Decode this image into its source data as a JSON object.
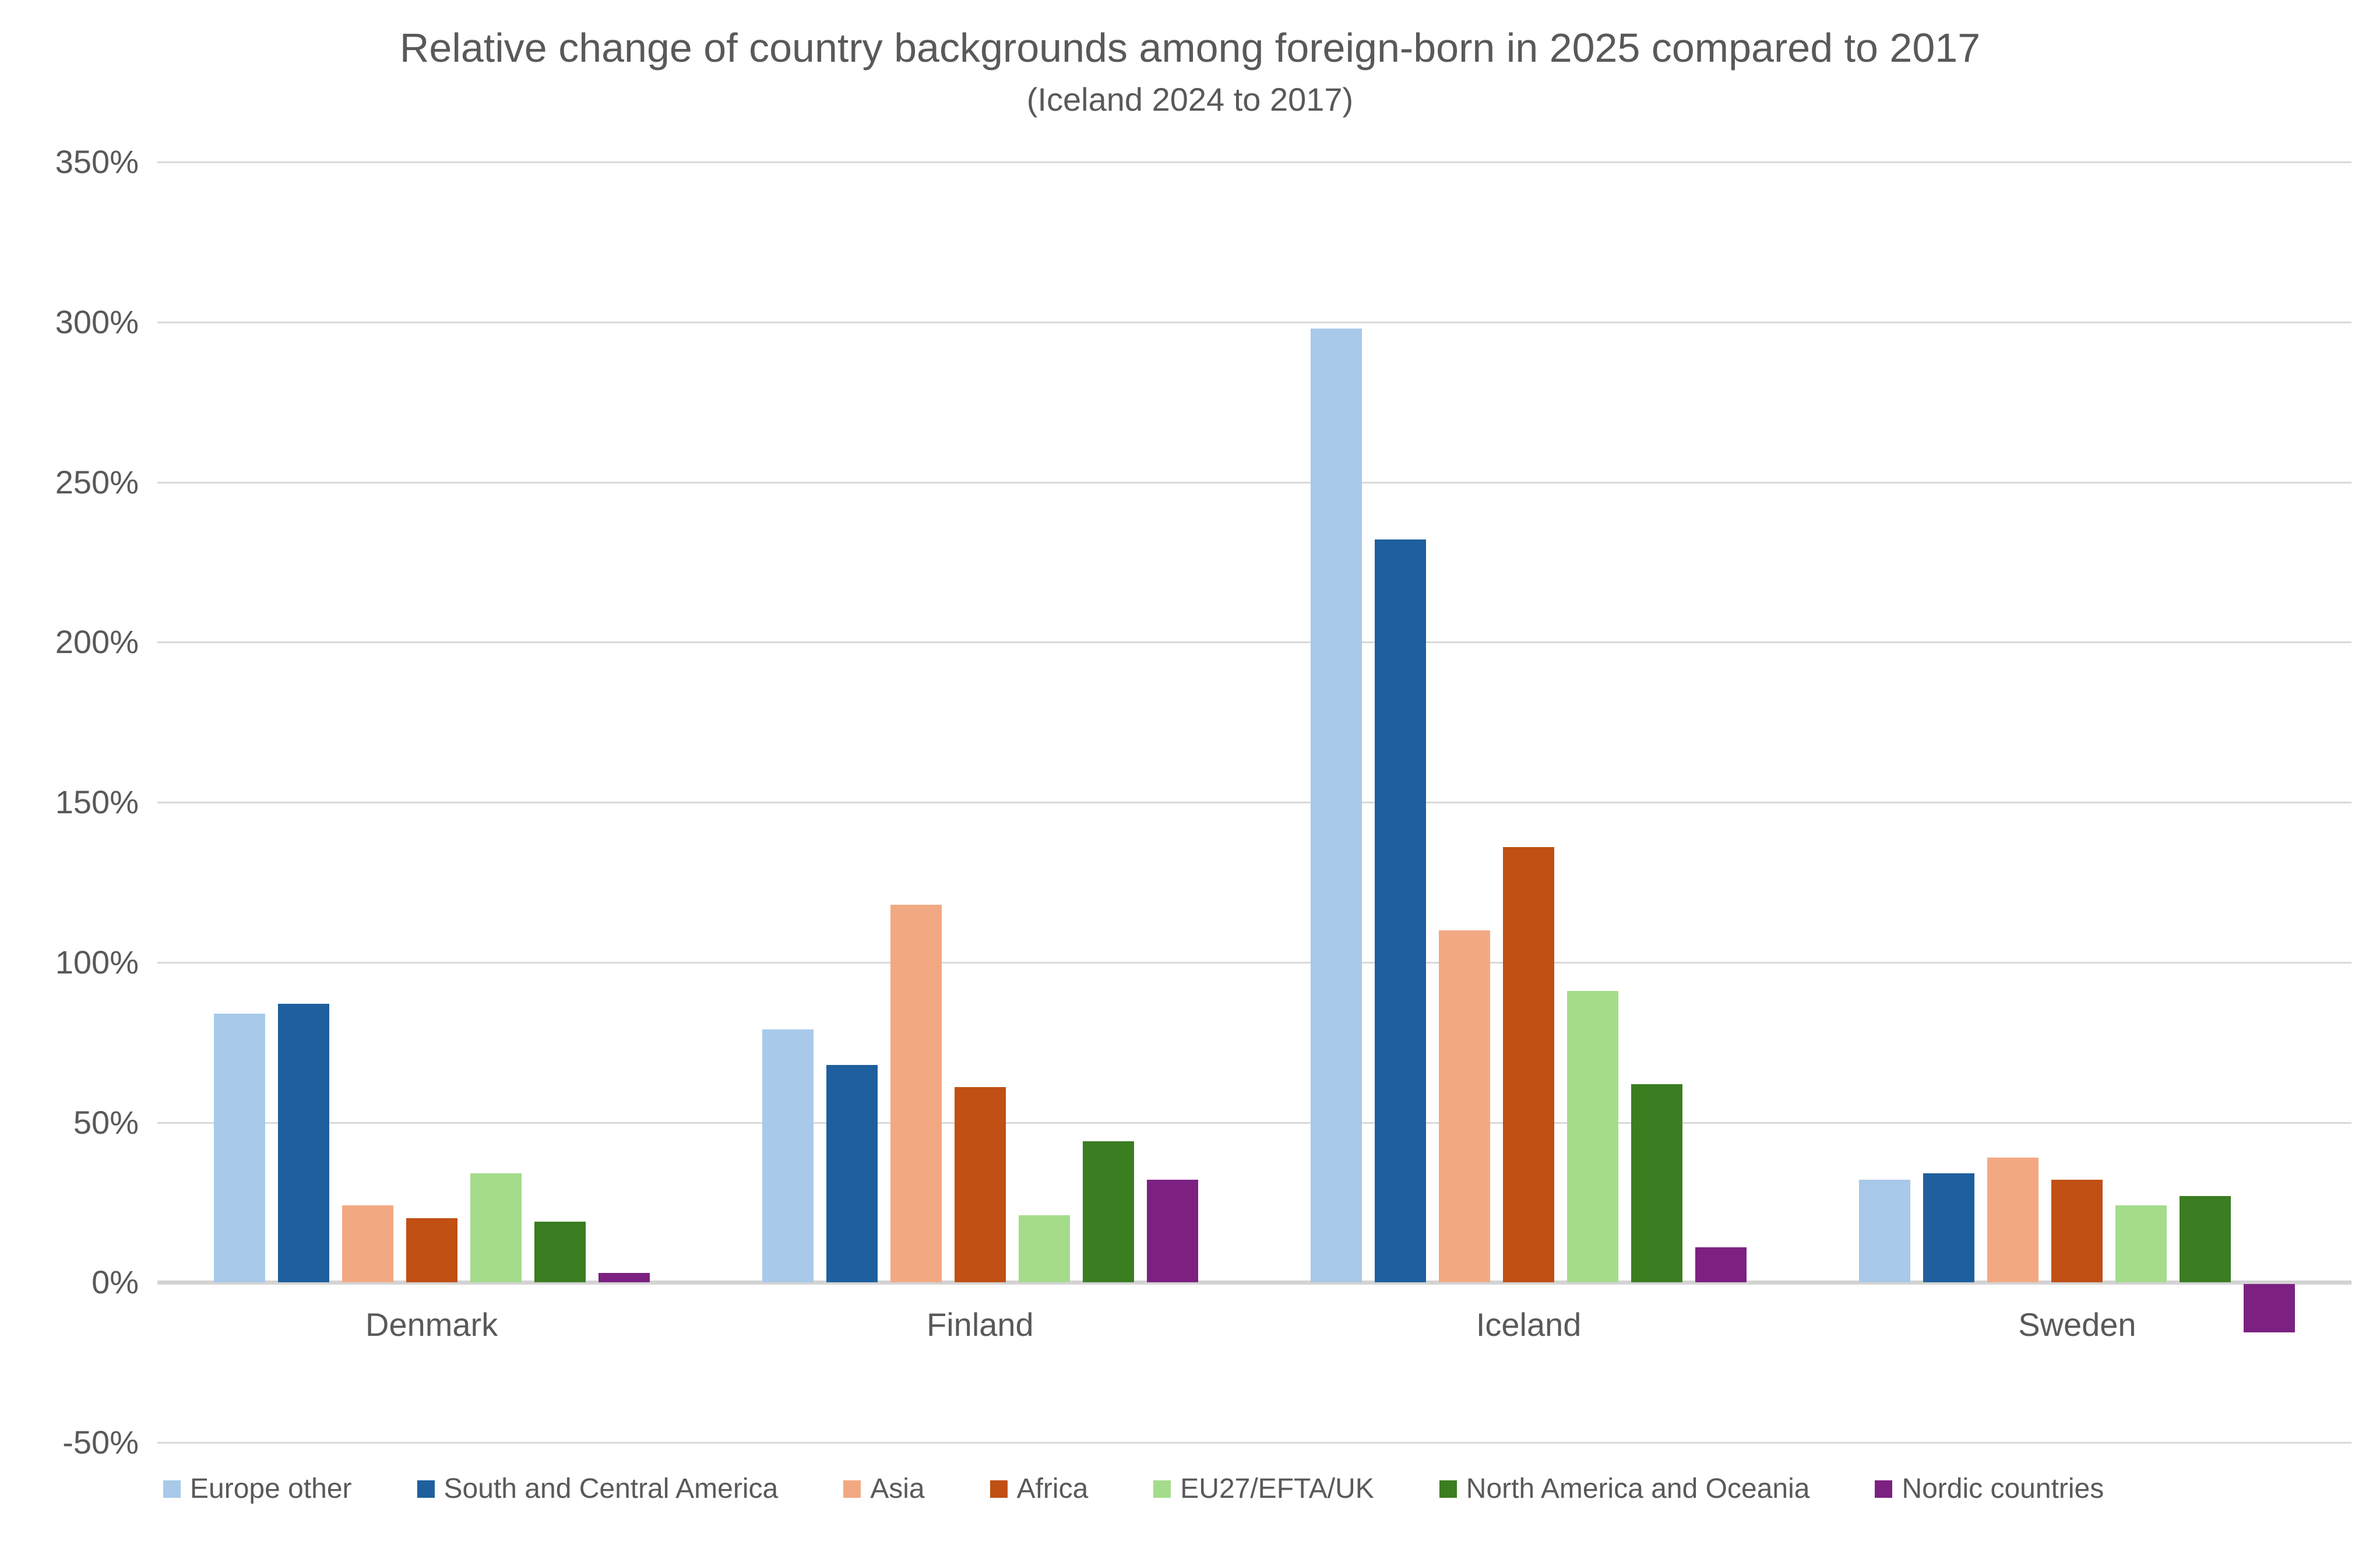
{
  "title": "Relative change of country backgrounds among foreign-born in 2025 compared to 2017",
  "subtitle": "(Iceland 2024 to 2017)",
  "text_color": "#595959",
  "gridline_color": "#d9d9d9",
  "background_color": "#ffffff",
  "chart_data": {
    "type": "bar",
    "title": "Relative change of country backgrounds among foreign-born in 2025 compared to 2017",
    "subtitle": "(Iceland 2024 to 2017)",
    "categories": [
      "Denmark",
      "Finland",
      "Iceland",
      "Sweden"
    ],
    "series": [
      {
        "name": "Europe other",
        "color": "#A8C9E9",
        "values": [
          84,
          79,
          298,
          32
        ]
      },
      {
        "name": "South and Central America",
        "color": "#1F5F9E",
        "values": [
          87,
          68,
          232,
          34
        ]
      },
      {
        "name": "Asia",
        "color": "#F2A983",
        "values": [
          24,
          118,
          110,
          39
        ]
      },
      {
        "name": "Africa",
        "color": "#C05014",
        "values": [
          20,
          61,
          136,
          32
        ]
      },
      {
        "name": "EU27/EFTA/UK",
        "color": "#A4DC8C",
        "values": [
          34,
          21,
          91,
          24
        ]
      },
      {
        "name": "North America and Oceania",
        "color": "#3B7D21",
        "values": [
          19,
          44,
          62,
          27
        ]
      },
      {
        "name": "Nordic countries",
        "color": "#7C2181",
        "values": [
          3,
          32,
          11,
          -15
        ]
      }
    ],
    "y_axis": {
      "min": -50,
      "max": 350,
      "step": 50,
      "unit": "%",
      "tick_labels": [
        "350%",
        "300%",
        "250%",
        "200%",
        "150%",
        "100%",
        "50%",
        "0%",
        "-50%"
      ]
    },
    "xlabel": "",
    "ylabel": "",
    "grid": true,
    "legend_position": "bottom"
  }
}
